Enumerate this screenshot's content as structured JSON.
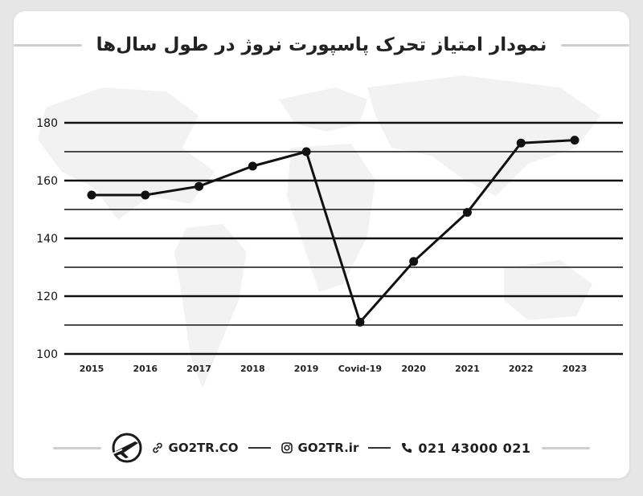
{
  "title": "نمودار امتیاز تحرک پاسپورت نروژ در طول سال‌ها",
  "chart_data": {
    "type": "line",
    "categories": [
      "2015",
      "2016",
      "2017",
      "2018",
      "2019",
      "Covid-19",
      "2020",
      "2021",
      "2022",
      "2023"
    ],
    "values": [
      155,
      155,
      158,
      165,
      170,
      111,
      132,
      149,
      173,
      174
    ],
    "ylim": [
      100,
      180
    ],
    "yticks": [
      100,
      120,
      140,
      160,
      180
    ],
    "ytick_labels": [
      "100",
      "120",
      "140",
      "160",
      "180"
    ],
    "minor_grid": [
      110,
      130,
      150,
      170
    ],
    "grid": true,
    "title": "",
    "xlabel": "",
    "ylabel": "",
    "line_color": "#111111"
  },
  "footer": {
    "website": "GO2TR.CO",
    "instagram": "GO2TR.ir",
    "phone": "021 43000 021"
  },
  "icons": {
    "logo": "plane-logo-icon",
    "website": "link-icon",
    "instagram": "instagram-icon",
    "phone": "phone-icon"
  },
  "colors": {
    "accent": "#111111",
    "background": "#ffffff",
    "page": "#e6e6e6"
  }
}
